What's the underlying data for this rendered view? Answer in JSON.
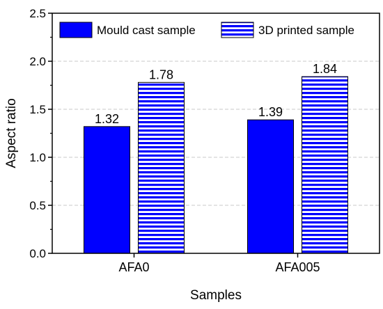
{
  "chart_data": {
    "type": "bar",
    "categories": [
      "AFA0",
      "AFA005"
    ],
    "series": [
      {
        "name": "Mould cast sample",
        "values": [
          1.32,
          1.39
        ],
        "data_labels": [
          "1.32",
          "1.39"
        ],
        "pattern": "solid"
      },
      {
        "name": "3D printed sample",
        "values": [
          1.78,
          1.84
        ],
        "data_labels": [
          "1.78",
          "1.84"
        ],
        "pattern": "horizontal-stripes"
      }
    ],
    "xlabel": "Samples",
    "ylabel": "Aspect ratio",
    "ylim": [
      0,
      2.5
    ],
    "yticks": [
      "0.0",
      "0.5",
      "1.0",
      "1.5",
      "2.0",
      "2.5"
    ],
    "grid": true,
    "legend_position": "top",
    "colors": {
      "bar": "#0000ff",
      "stripe_bg": "#ffffff",
      "axis": "#000000",
      "grid": "#c8c8c8"
    }
  }
}
